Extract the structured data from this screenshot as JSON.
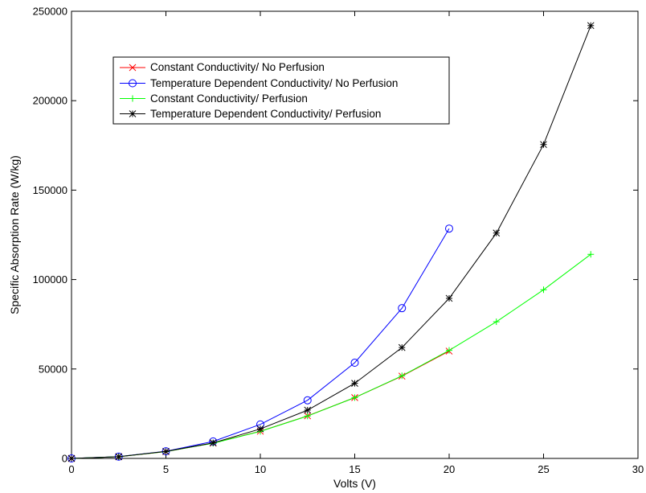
{
  "chart_data": {
    "type": "line",
    "title": "",
    "xlabel": "Volts (V)",
    "ylabel": "Specific Absorption Rate (W/kg)",
    "xlim": [
      0,
      30
    ],
    "ylim": [
      0,
      250000
    ],
    "xticks": [
      0,
      5,
      10,
      15,
      20,
      25,
      30
    ],
    "yticks": [
      0,
      50000,
      100000,
      150000,
      200000,
      250000
    ],
    "xtick_labels": [
      "0",
      "5",
      "10",
      "15",
      "20",
      "25",
      "30"
    ],
    "ytick_labels": [
      "0",
      "50000",
      "100000",
      "150000",
      "200000",
      "250000"
    ],
    "grid": false,
    "legend_position": "top-left",
    "series": [
      {
        "name": "Constant Conductivity/ No Perfusion",
        "color": "#ff0000",
        "marker": "x",
        "x": [
          0,
          2.5,
          5,
          7.5,
          10,
          12.5,
          15,
          17.5,
          20
        ],
        "y": [
          0,
          950,
          3800,
          8600,
          15200,
          23800,
          34000,
          46000,
          60000
        ]
      },
      {
        "name": "Temperature Dependent Conductivity/ No Perfusion",
        "color": "#0000ff",
        "marker": "circle",
        "x": [
          0,
          2.5,
          5,
          7.5,
          10,
          12.5,
          15,
          17.5,
          20
        ],
        "y": [
          0,
          1000,
          4000,
          9500,
          19000,
          32500,
          53500,
          84000,
          128500
        ]
      },
      {
        "name": "Constant Conductivity/ Perfusion",
        "color": "#00ff00",
        "marker": "plus",
        "x": [
          0,
          2.5,
          5,
          7.5,
          10,
          12.5,
          15,
          17.5,
          20,
          22.5,
          25,
          27.5
        ],
        "y": [
          0,
          950,
          3800,
          8500,
          15100,
          23700,
          34000,
          46200,
          60400,
          76400,
          94300,
          114100
        ]
      },
      {
        "name": "Temperature Dependent Conductivity/ Perfusion",
        "color": "#000000",
        "marker": "star",
        "x": [
          0,
          2.5,
          5,
          7.5,
          10,
          12.5,
          15,
          17.5,
          20,
          22.5,
          25,
          27.5
        ],
        "y": [
          0,
          950,
          3900,
          8700,
          16500,
          27000,
          42000,
          62000,
          89500,
          126000,
          175500,
          242000
        ]
      }
    ]
  }
}
